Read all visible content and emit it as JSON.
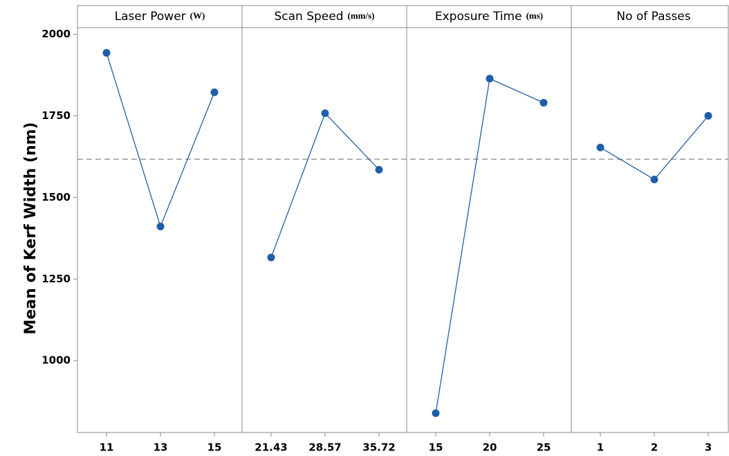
{
  "chart_data": {
    "type": "line",
    "ylabel": "Mean of Kerf Width (nm)",
    "ylim": [
      780,
      2020
    ],
    "yticks": [
      1000,
      1250,
      1500,
      1750,
      2000
    ],
    "mean_line": 1617,
    "color": "#1f5ea8",
    "panels": [
      {
        "title": "Laser Power",
        "unit": "(W)",
        "categories": [
          "11",
          "13",
          "15"
        ],
        "values": [
          1943,
          1411,
          1822
        ]
      },
      {
        "title": "Scan Speed",
        "unit": "(mm/s)",
        "categories": [
          "21.43",
          "28.57",
          "35.72"
        ],
        "values": [
          1316,
          1758,
          1585
        ]
      },
      {
        "title": "Exposure Time",
        "unit": "(ms)",
        "categories": [
          "15",
          "20",
          "25"
        ],
        "values": [
          839,
          1864,
          1790
        ]
      },
      {
        "title": "No of Passes",
        "categories": [
          "1",
          "2",
          "3"
        ],
        "values": [
          1653,
          1555,
          1750
        ]
      }
    ]
  }
}
